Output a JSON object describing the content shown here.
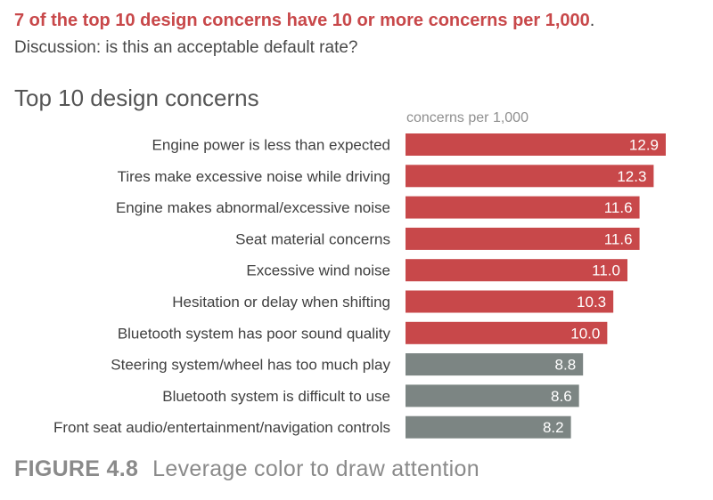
{
  "headline": {
    "text": "7 of the top 10 design concerns have 10 or more concerns per 1,000",
    "trailing": "."
  },
  "subhead": "Discussion: is this an acceptable default rate?",
  "caption": {
    "figure": "FIGURE 4.8",
    "text": "Leverage color to draw attention"
  },
  "colors": {
    "highlight": "#c8484a",
    "muted": "#7c8583",
    "bar_label": "#ffffff",
    "category_label": "#3f3f3f",
    "title": "#555555",
    "axis_label": "#8f8f8f"
  },
  "chart_data": {
    "type": "bar",
    "orientation": "horizontal",
    "title": "Top 10 design concerns",
    "xlabel": "concerns per 1,000",
    "xlim": [
      0,
      15
    ],
    "grid": false,
    "categories": [
      "Engine power is less than expected",
      "Tires make excessive noise while driving",
      "Engine makes abnormal/excessive noise",
      "Seat material concerns",
      "Excessive wind noise",
      "Hesitation or delay when shifting",
      "Bluetooth system has poor sound quality",
      "Steering system/wheel has too much play",
      "Bluetooth system is difficult to use",
      "Front seat audio/entertainment/navigation controls"
    ],
    "values": [
      12.9,
      12.3,
      11.6,
      11.6,
      11.0,
      10.3,
      10.0,
      8.8,
      8.6,
      8.2
    ],
    "value_labels": [
      "12.9",
      "12.3",
      "11.6",
      "11.6",
      "11.0",
      "10.3",
      "10.0",
      "8.8",
      "8.6",
      "8.2"
    ],
    "highlight_threshold": 10
  }
}
